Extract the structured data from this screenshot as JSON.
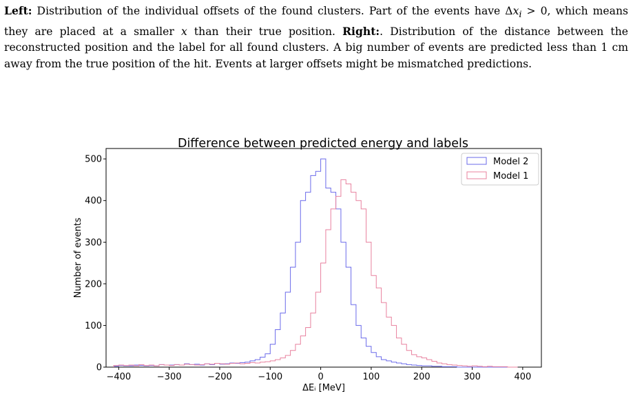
{
  "caption": {
    "left_label": "Left:",
    "left_text_1": " Distribution of the individual offsets of the found clusters. Part of the events have ",
    "math_delta": "Δ",
    "math_x": "x",
    "math_sub": "i",
    "math_gt": " > 0",
    "left_text_2": ", which means they are placed at a smaller ",
    "left_text_3": " than their true position.  ",
    "right_label": "Right:",
    "right_text": ". Distribution of the distance between the reconstructed position and the label for all found clusters.  A big number of events are predicted less than 1 cm away from the true position of the hit.  Events at larger offsets might be mismatched predictions."
  },
  "colors": {
    "model2": "#6a6aea",
    "model1": "#e8809e",
    "axis": "#000000"
  },
  "chart_data": {
    "type": "histogram",
    "title": "Difference between predicted energy and labels",
    "xlabel": "ΔEᵢ [MeV]",
    "ylabel": "Number of events",
    "xlim": [
      -425,
      437
    ],
    "ylim": [
      0,
      525
    ],
    "xticks": [
      -400,
      -300,
      -200,
      -100,
      0,
      100,
      200,
      300,
      400
    ],
    "yticks": [
      0,
      100,
      200,
      300,
      400,
      500
    ],
    "legend_position": "top-right",
    "bin_start": -410,
    "bin_width": 10,
    "series": [
      {
        "name": "Model 2",
        "color": "#6a6aea",
        "values": [
          2,
          4,
          3,
          3,
          5,
          4,
          3,
          4,
          3,
          6,
          5,
          5,
          6,
          5,
          8,
          6,
          7,
          5,
          8,
          6,
          9,
          7,
          8,
          10,
          9,
          11,
          12,
          15,
          18,
          24,
          32,
          55,
          90,
          130,
          180,
          240,
          300,
          400,
          420,
          460,
          470,
          500,
          430,
          420,
          380,
          300,
          240,
          150,
          100,
          70,
          50,
          35,
          25,
          18,
          15,
          12,
          10,
          8,
          6,
          5,
          4,
          3,
          3,
          2,
          2,
          1,
          1,
          1,
          0,
          0,
          0,
          0,
          0,
          0,
          0,
          0,
          0,
          0,
          0,
          0
        ]
      },
      {
        "name": "Model 1",
        "color": "#e8809e",
        "values": [
          4,
          5,
          4,
          5,
          3,
          6,
          4,
          5,
          3,
          6,
          5,
          4,
          6,
          5,
          7,
          6,
          5,
          6,
          8,
          7,
          9,
          8,
          7,
          9,
          10,
          8,
          9,
          11,
          10,
          12,
          13,
          15,
          18,
          22,
          28,
          40,
          55,
          75,
          95,
          130,
          180,
          250,
          330,
          380,
          410,
          450,
          440,
          420,
          400,
          380,
          300,
          220,
          190,
          155,
          120,
          100,
          70,
          55,
          40,
          30,
          25,
          22,
          18,
          14,
          10,
          8,
          6,
          5,
          4,
          3,
          2,
          3,
          2,
          1,
          2,
          1,
          1,
          1,
          0,
          0
        ]
      }
    ]
  }
}
